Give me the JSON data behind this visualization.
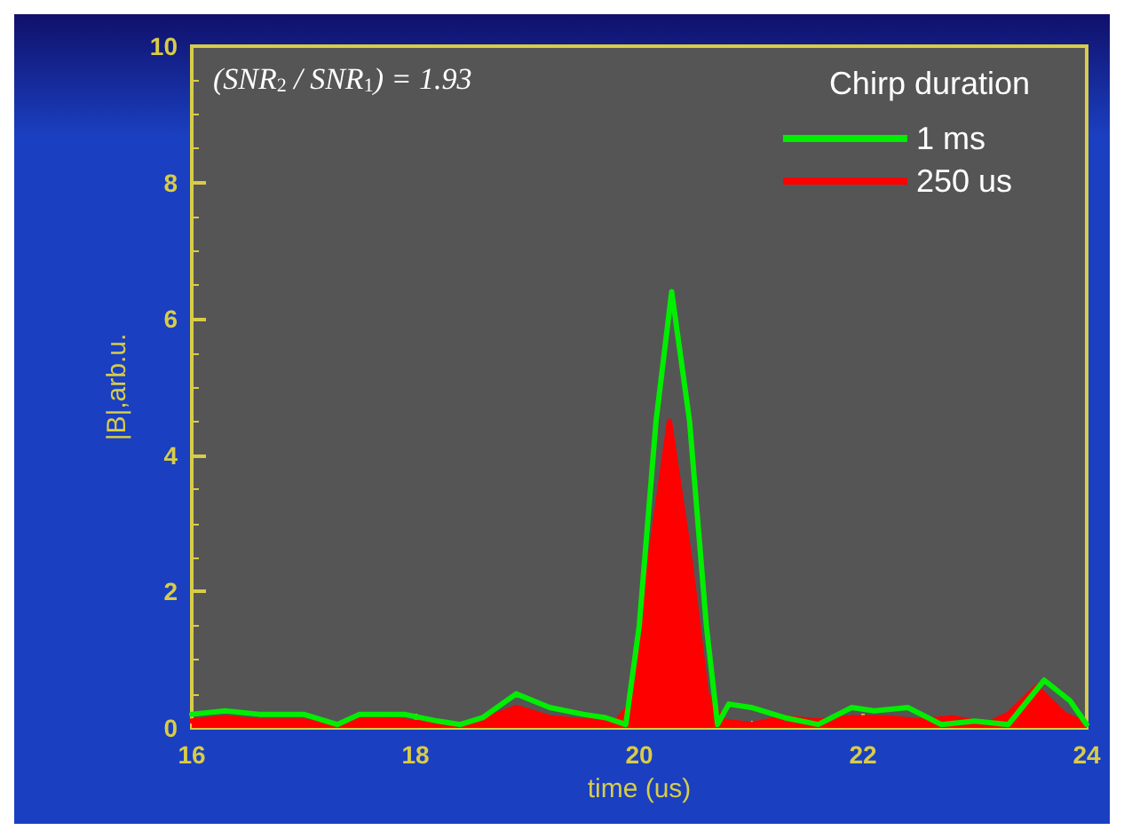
{
  "chart_data": {
    "type": "line",
    "xlabel": "time (us)",
    "ylabel": "|B|,arb.u.",
    "legend_title": "Chirp duration",
    "legend": "top right",
    "grid": false,
    "marker": "none",
    "line_style": "solid",
    "annotations": [
      "(SNR$_{2}$ / SNR$_{1}$) = 1.93"
    ],
    "xlim": [
      16,
      24
    ],
    "xticks": [
      16,
      18,
      20,
      22,
      24
    ],
    "ylim": [
      0,
      10
    ],
    "yticks": [
      0,
      2,
      4,
      6,
      8,
      10
    ],
    "series": [
      {
        "name": "250 us",
        "color": "#ff0000",
        "type": "area",
        "x": [
          16,
          16.3,
          16.6,
          17.0,
          17.3,
          17.6,
          17.9,
          18.2,
          18.5,
          18.9,
          19.2,
          19.5,
          19.8,
          19.95,
          20.1,
          20.27,
          20.45,
          20.6,
          20.75,
          21.0,
          21.3,
          21.6,
          21.9,
          22.2,
          22.5,
          22.8,
          23.1,
          23.3,
          23.55,
          23.8,
          24
        ],
        "values": [
          0.1,
          0.15,
          0.1,
          0.1,
          0.05,
          0.15,
          0.1,
          0.05,
          0.05,
          0.3,
          0.15,
          0.1,
          0.1,
          0.4,
          2.5,
          4.5,
          2.5,
          0.5,
          0.1,
          0.05,
          0.15,
          0.1,
          0.15,
          0.15,
          0.1,
          0.15,
          0.05,
          0.2,
          0.6,
          0.2,
          0.05
        ]
      },
      {
        "name": "1 ms",
        "color": "#00ee00",
        "x": [
          16,
          16.3,
          16.6,
          17.0,
          17.3,
          17.5,
          17.9,
          18.2,
          18.4,
          18.6,
          18.9,
          19.2,
          19.5,
          19.7,
          19.88,
          20.0,
          20.15,
          20.29,
          20.45,
          20.6,
          20.7,
          20.8,
          21.0,
          21.3,
          21.6,
          21.9,
          22.1,
          22.4,
          22.7,
          23.0,
          23.3,
          23.62,
          23.85,
          24
        ],
        "values": [
          0.2,
          0.25,
          0.2,
          0.2,
          0.05,
          0.2,
          0.2,
          0.1,
          0.05,
          0.15,
          0.5,
          0.3,
          0.2,
          0.15,
          0.05,
          1.5,
          4.5,
          6.4,
          4.5,
          1.5,
          0.05,
          0.35,
          0.3,
          0.15,
          0.05,
          0.3,
          0.25,
          0.3,
          0.05,
          0.1,
          0.05,
          0.7,
          0.4,
          0.05
        ]
      }
    ]
  }
}
